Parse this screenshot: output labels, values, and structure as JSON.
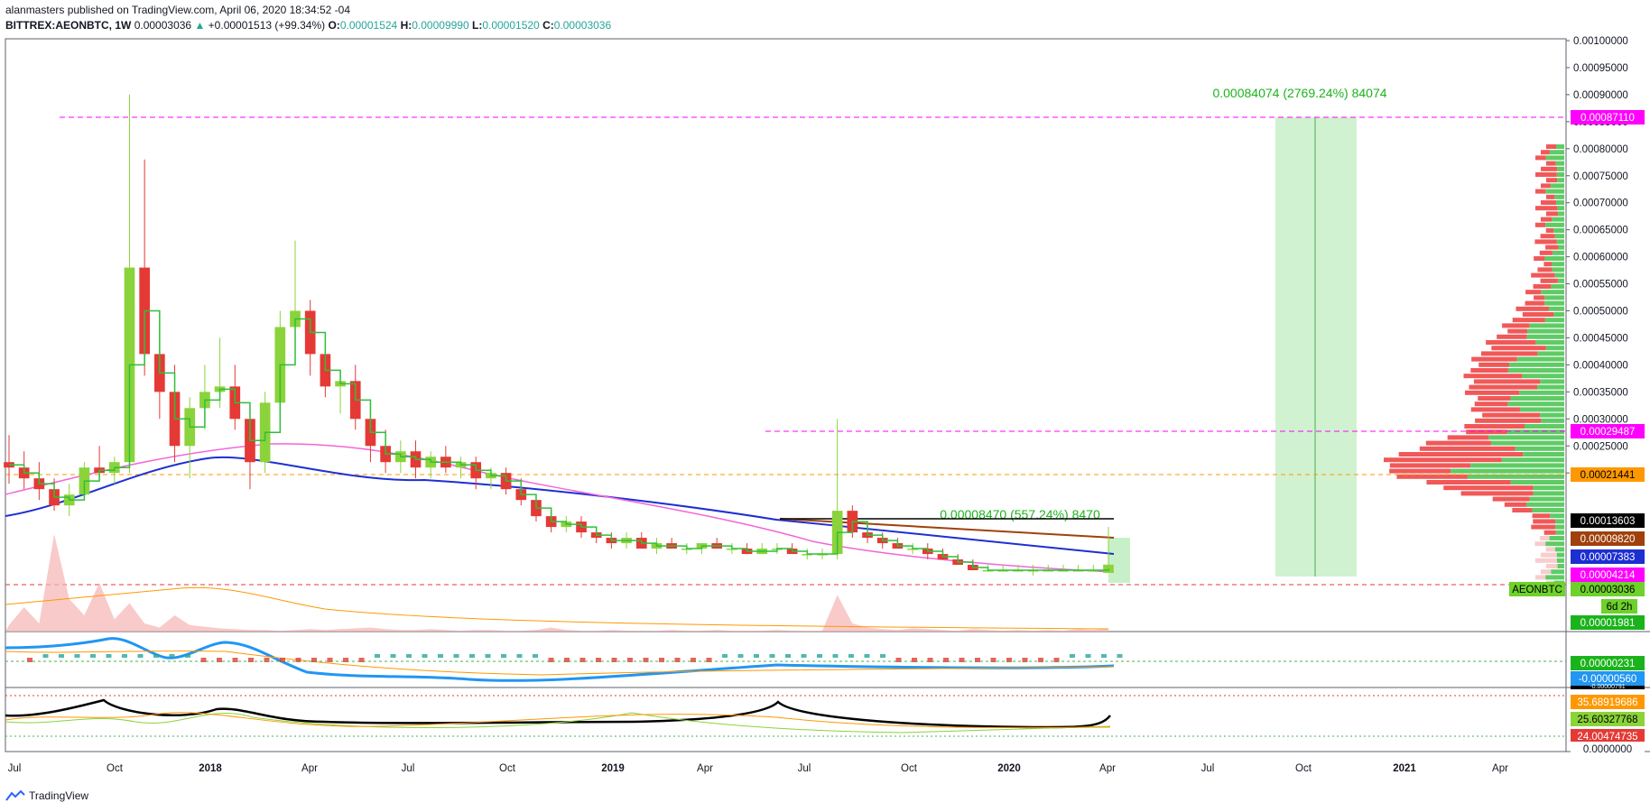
{
  "header": {
    "publisher_line": "alanmasters published on TradingView.com, April 06, 2020 18:34:52 -04",
    "symbol": "BITTREX:AEONBTC, 1W",
    "last": "0.00003036",
    "change": "+0.00001513 (+99.34%)",
    "o_label": "O:",
    "o": "0.00001524",
    "h_label": "H:",
    "h": "0.00009990",
    "l_label": "L:",
    "l": "0.00001520",
    "c_label": "C:",
    "c": "0.00003036"
  },
  "footer": {
    "brand": "TradingView"
  },
  "colors": {
    "up": "#8bd33a",
    "down": "#e53935",
    "ema_blue": "#1d2fd1",
    "ema_pink": "#f266d8",
    "step": "#2fbf3a",
    "magenta": "#ff00ff",
    "orange": "#ff9800",
    "brown": "#a0410d"
  },
  "chart_data": {
    "type": "candlestick",
    "price_axis": {
      "ylim": [
        0.0,
        0.001
      ],
      "ticks": [
        "0.00100000",
        "0.00095000",
        "0.00090000",
        "0.00085000",
        "0.00080000",
        "0.00075000",
        "0.00070000",
        "0.00065000",
        "0.00060000",
        "0.00055000",
        "0.00050000",
        "0.00045000",
        "0.00040000",
        "0.00035000",
        "0.00030000",
        "0.00025000",
        "0.00020000"
      ]
    },
    "time_axis": {
      "labels": [
        "Jul",
        "Oct",
        "2018",
        "Apr",
        "Jul",
        "Oct",
        "2019",
        "Apr",
        "Jul",
        "Oct",
        "2020",
        "Apr",
        "Jul",
        "Oct",
        "2021",
        "Apr"
      ],
      "bold": [
        "2018",
        "2019",
        "2020",
        "2021"
      ]
    },
    "price_tags": [
      {
        "value": "0.00087110",
        "bg": "#ff00ff",
        "fg": "#ffffff"
      },
      {
        "value": "0.00029487",
        "bg": "#ff00ff",
        "fg": "#ffffff"
      },
      {
        "value": "0.00021441",
        "bg": "#ff9800",
        "fg": "#000000"
      },
      {
        "value": "0.00013603",
        "bg": "#000000",
        "fg": "#ffffff"
      },
      {
        "value": "0.00009820",
        "bg": "#a0410d",
        "fg": "#ffffff"
      },
      {
        "value": "0.00007383",
        "bg": "#1d2fd1",
        "fg": "#ffffff"
      },
      {
        "value": "0.00004214",
        "bg": "#ff00ff",
        "fg": "#ffffff"
      },
      {
        "value": "0.00003036",
        "bg": "#6ed12c",
        "fg": "#000000"
      },
      {
        "value": "6d 2h",
        "bg": "#6ed12c",
        "fg": "#000000"
      },
      {
        "value": "0.00001981",
        "bg": "#1bb31b",
        "fg": "#ffffff"
      }
    ],
    "symbol_tag": "AEONBTC",
    "measure_big": {
      "text": "0.00084074 (2769.24%) 84074"
    },
    "measure_small": {
      "text": "0.00008470 (557.24%) 8470"
    },
    "macd_tags": [
      {
        "value": "0.00000231",
        "bg": "#1bb31b",
        "fg": "#ffffff"
      },
      {
        "value": "-0.00000560",
        "bg": "#2196f3",
        "fg": "#ffffff"
      },
      {
        "value": "-0.00000791",
        "bg": "#000000",
        "fg": "#ffffff"
      }
    ],
    "osc_tags": [
      {
        "value": "35.68919686",
        "bg": "#ff9800",
        "fg": "#ffffff"
      },
      {
        "value": "25.60327768",
        "bg": "#8bd33a",
        "fg": "#000000"
      },
      {
        "value": "24.00474735",
        "bg": "#e53935",
        "fg": "#ffffff"
      },
      {
        "value": "0.0000000",
        "bg": "#ffffff",
        "fg": "#131722"
      }
    ],
    "candles": [
      [
        0.00022,
        0.00027,
        0.00018,
        0.00021
      ],
      [
        0.00021,
        0.00024,
        0.00017,
        0.00019
      ],
      [
        0.00019,
        0.00022,
        0.00015,
        0.00017
      ],
      [
        0.00017,
        0.00019,
        0.00013,
        0.00014
      ],
      [
        0.00014,
        0.00018,
        0.00012,
        0.00016
      ],
      [
        0.00016,
        0.00022,
        0.00015,
        0.00021
      ],
      [
        0.00021,
        0.00025,
        0.00019,
        0.0002
      ],
      [
        0.0002,
        0.00023,
        0.00018,
        0.00022
      ],
      [
        0.00022,
        0.0009,
        0.0002,
        0.00058
      ],
      [
        0.00058,
        0.00078,
        0.00038,
        0.00042
      ],
      [
        0.00042,
        0.00048,
        0.0003,
        0.00035
      ],
      [
        0.00035,
        0.0004,
        0.00022,
        0.00025
      ],
      [
        0.00025,
        0.00034,
        0.00019,
        0.00032
      ],
      [
        0.00032,
        0.0004,
        0.00028,
        0.00035
      ],
      [
        0.00035,
        0.00045,
        0.00032,
        0.00036
      ],
      [
        0.00036,
        0.0004,
        0.00028,
        0.0003
      ],
      [
        0.0003,
        0.00033,
        0.00017,
        0.00022
      ],
      [
        0.00022,
        0.00035,
        0.0002,
        0.00033
      ],
      [
        0.00033,
        0.0005,
        0.0003,
        0.00047
      ],
      [
        0.00047,
        0.00063,
        0.00042,
        0.0005
      ],
      [
        0.0005,
        0.00052,
        0.00038,
        0.00042
      ],
      [
        0.00042,
        0.00044,
        0.00034,
        0.00036
      ],
      [
        0.00036,
        0.00039,
        0.00031,
        0.00037
      ],
      [
        0.00037,
        0.0004,
        0.00028,
        0.0003
      ],
      [
        0.0003,
        0.00033,
        0.00022,
        0.00025
      ],
      [
        0.00025,
        0.00028,
        0.0002,
        0.00022
      ],
      [
        0.00022,
        0.00026,
        0.0002,
        0.00024
      ],
      [
        0.00024,
        0.00026,
        0.00019,
        0.00021
      ],
      [
        0.00021,
        0.00024,
        0.00019,
        0.00023
      ],
      [
        0.00023,
        0.00025,
        0.0002,
        0.00021
      ],
      [
        0.00021,
        0.00023,
        0.00019,
        0.00022
      ],
      [
        0.00022,
        0.00023,
        0.00017,
        0.00019
      ],
      [
        0.00019,
        0.00021,
        0.00017,
        0.0002
      ],
      [
        0.0002,
        0.00021,
        0.00016,
        0.00017
      ],
      [
        0.00017,
        0.00019,
        0.00014,
        0.00015
      ],
      [
        0.00015,
        0.00016,
        0.00011,
        0.00012
      ],
      [
        0.00012,
        0.00013,
        9e-05,
        0.0001
      ],
      [
        0.0001,
        0.00012,
        9e-05,
        0.00011
      ],
      [
        0.00011,
        0.00012,
        8e-05,
        9e-05
      ],
      [
        9e-05,
        0.0001,
        7e-05,
        8e-05
      ],
      [
        8e-05,
        9e-05,
        6e-05,
        7e-05
      ],
      [
        7e-05,
        9e-05,
        6e-05,
        8e-05
      ],
      [
        8e-05,
        9e-05,
        6e-05,
        6e-05
      ],
      [
        6e-05,
        8e-05,
        5e-05,
        7e-05
      ],
      [
        7e-05,
        8e-05,
        6e-05,
        6e-05
      ],
      [
        6e-05,
        7e-05,
        5e-05,
        6e-05
      ],
      [
        6e-05,
        7e-05,
        5e-05,
        7e-05
      ],
      [
        7e-05,
        8e-05,
        6e-05,
        6e-05
      ],
      [
        6e-05,
        7e-05,
        5e-05,
        6e-05
      ],
      [
        6e-05,
        7e-05,
        5e-05,
        5e-05
      ],
      [
        5e-05,
        7e-05,
        5e-05,
        6e-05
      ],
      [
        6e-05,
        7e-05,
        5e-05,
        6e-05
      ],
      [
        6e-05,
        7e-05,
        5e-05,
        5e-05
      ],
      [
        5e-05,
        6e-05,
        4e-05,
        5e-05
      ],
      [
        5e-05,
        6e-05,
        4e-05,
        5e-05
      ],
      [
        5e-05,
        0.0003,
        4e-05,
        0.00013
      ],
      [
        0.00013,
        0.00014,
        8e-05,
        9e-05
      ],
      [
        9e-05,
        0.0001,
        7e-05,
        8e-05
      ],
      [
        8e-05,
        9e-05,
        6e-05,
        7e-05
      ],
      [
        7e-05,
        8e-05,
        6e-05,
        6e-05
      ],
      [
        6e-05,
        7e-05,
        5e-05,
        6e-05
      ],
      [
        6e-05,
        7e-05,
        4e-05,
        5e-05
      ],
      [
        5e-05,
        6e-05,
        4e-05,
        4e-05
      ],
      [
        4e-05,
        5e-05,
        3e-05,
        3e-05
      ],
      [
        3e-05,
        4e-05,
        2e-05,
        2e-05
      ],
      [
        2e-05,
        3e-05,
        2e-05,
        2e-05
      ],
      [
        2e-05,
        3e-05,
        2e-05,
        2e-05
      ],
      [
        2e-05,
        3e-05,
        2e-05,
        2e-05
      ],
      [
        2e-05,
        3e-05,
        1e-05,
        2e-05
      ],
      [
        2e-05,
        3e-05,
        2e-05,
        2e-05
      ],
      [
        2e-05,
        3e-05,
        2e-05,
        2e-05
      ],
      [
        2e-05,
        3e-05,
        2e-05,
        2e-05
      ],
      [
        2e-05,
        3e-05,
        2e-05,
        2e-05
      ],
      [
        1.5e-05,
        9.99e-05,
        1.52e-05,
        3.036e-05
      ]
    ]
  }
}
